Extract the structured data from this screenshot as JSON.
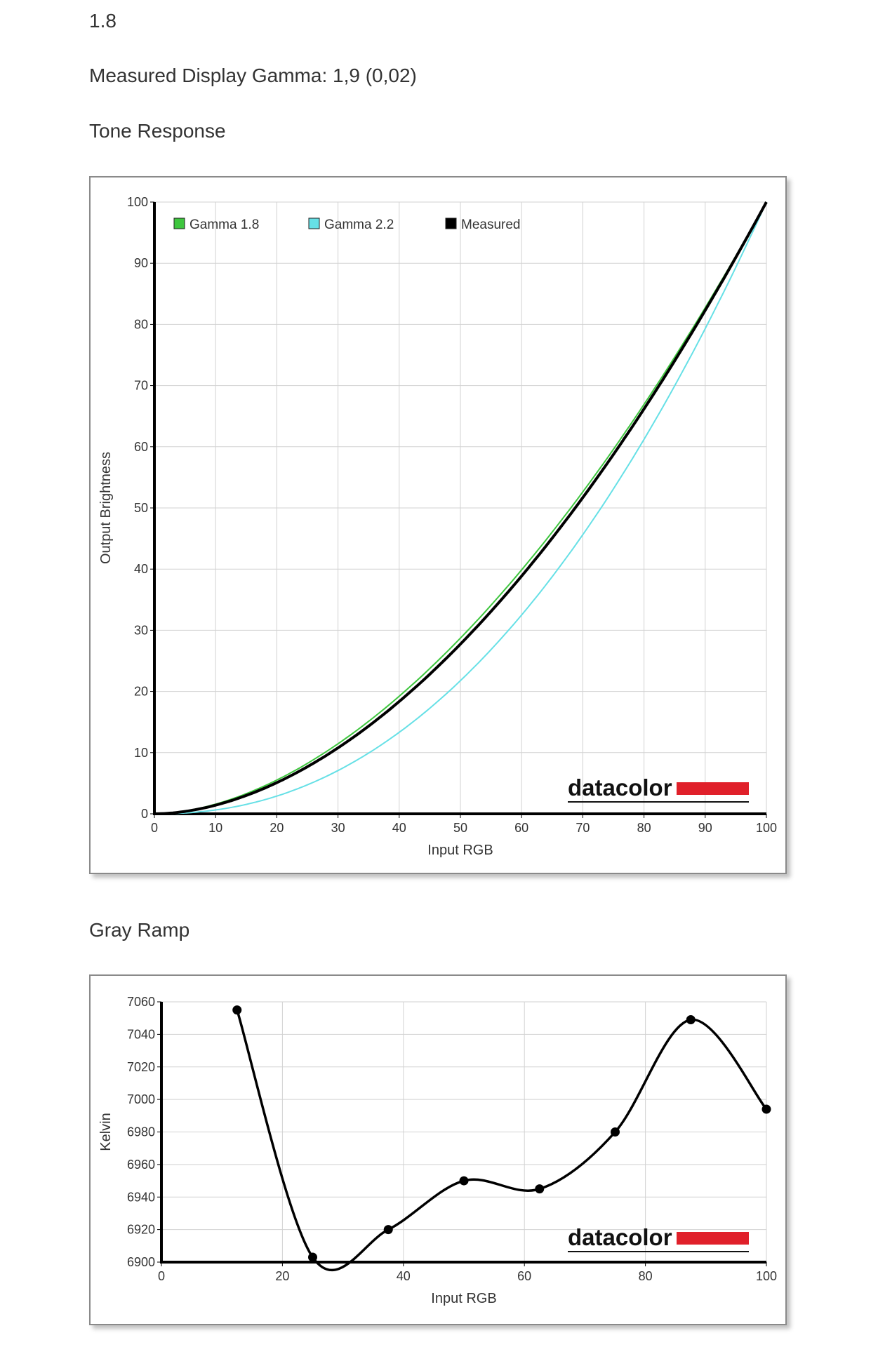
{
  "page": {
    "gamma_target": "1.8",
    "measured_gamma": "Measured Display Gamma: 1,9 (0,02)",
    "tone_section_title": "Tone Response",
    "gray_section_title": "Gray Ramp",
    "logo_text": "datacolor"
  },
  "colors": {
    "gamma18": "#3ec63e",
    "gamma22": "#66e0e6",
    "measured": "#000000",
    "logo_red": "#e0202a"
  },
  "chart_data": [
    {
      "type": "line",
      "xlabel": "Input RGB",
      "ylabel": "Output Brightness",
      "xlim": [
        0,
        100
      ],
      "ylim": [
        0,
        100
      ],
      "xticks": [
        0,
        10,
        20,
        30,
        40,
        50,
        60,
        70,
        80,
        90,
        100
      ],
      "yticks": [
        0,
        10,
        20,
        30,
        40,
        50,
        60,
        70,
        80,
        90,
        100
      ],
      "grid": true,
      "legend": "top-left",
      "series": [
        {
          "name": "Gamma 1.8",
          "color": "#3ec63e",
          "gamma": 1.8,
          "x": [
            0,
            5,
            10,
            15,
            20,
            25,
            30,
            35,
            40,
            45,
            50,
            55,
            60,
            65,
            70,
            75,
            80,
            85,
            90,
            95,
            100
          ],
          "y": [
            0,
            0.5,
            1.6,
            3.3,
            5.5,
            8.3,
            11.5,
            15.1,
            19.2,
            23.8,
            28.7,
            34.0,
            39.9,
            46.0,
            52.6,
            59.6,
            66.9,
            74.6,
            82.7,
            91.2,
            100
          ]
        },
        {
          "name": "Gamma 2.2",
          "color": "#66e0e6",
          "gamma": 2.2,
          "x": [
            0,
            5,
            10,
            15,
            20,
            25,
            30,
            35,
            40,
            45,
            50,
            55,
            60,
            65,
            70,
            75,
            80,
            85,
            90,
            95,
            100
          ],
          "y": [
            0,
            0.1,
            0.6,
            1.6,
            2.9,
            4.7,
            7.1,
            9.9,
            13.3,
            17.3,
            21.8,
            26.8,
            32.5,
            38.7,
            45.6,
            53.1,
            61.2,
            69.9,
            79.3,
            89.3,
            100
          ]
        },
        {
          "name": "Measured",
          "color": "#000000",
          "width": 4,
          "gamma": 1.85,
          "x": [
            0,
            5,
            10,
            15,
            20,
            25,
            30,
            35,
            40,
            45,
            50,
            55,
            60,
            65,
            70,
            75,
            80,
            85,
            90,
            95,
            100
          ],
          "y": [
            0,
            0.4,
            1.4,
            3.0,
            5.1,
            7.7,
            10.8,
            14.3,
            18.4,
            22.8,
            27.7,
            33.0,
            38.9,
            45.0,
            51.7,
            58.8,
            66.1,
            73.8,
            82.2,
            91.0,
            100
          ]
        }
      ]
    },
    {
      "type": "line",
      "xlabel": "Input RGB",
      "ylabel": "Kelvin",
      "xlim": [
        0,
        100
      ],
      "ylim": [
        6900,
        7060
      ],
      "xticks": [
        0,
        20,
        40,
        60,
        80,
        100
      ],
      "yticks": [
        6900,
        6920,
        6940,
        6960,
        6980,
        7000,
        7020,
        7040,
        7060
      ],
      "grid": true,
      "series": [
        {
          "color": "#000000",
          "markers": true,
          "x": [
            12.5,
            25,
            37.5,
            50,
            62.5,
            75,
            87.5,
            100
          ],
          "y": [
            7055,
            6903,
            6920,
            6950,
            6945,
            6980,
            7049,
            6994
          ]
        }
      ]
    }
  ]
}
